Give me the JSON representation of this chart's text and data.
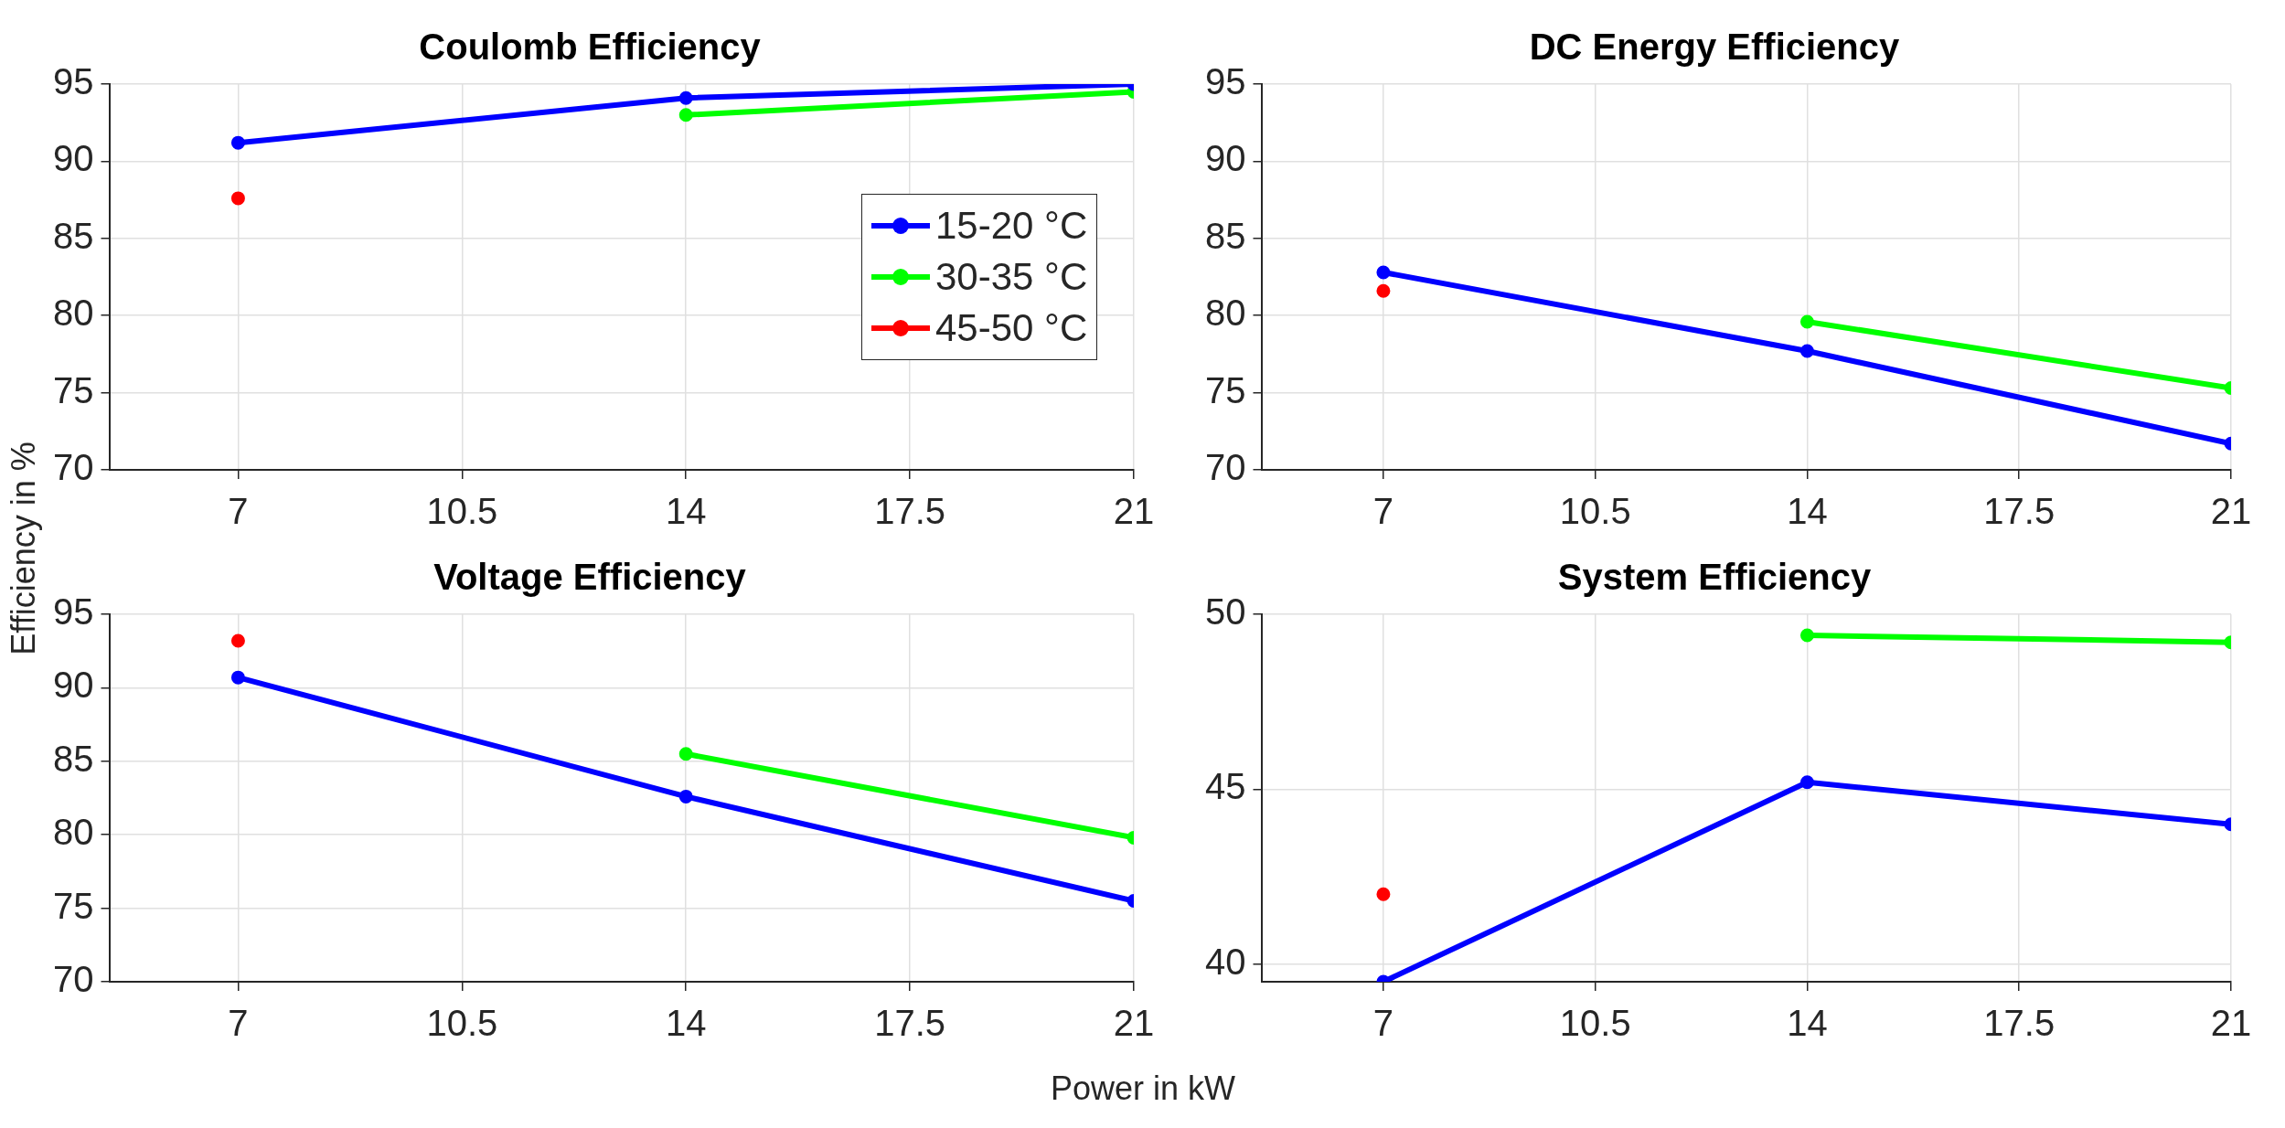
{
  "chart_data": [
    {
      "type": "line",
      "title": "Coulomb Efficiency",
      "ylabel": "Efficiency in %",
      "x": [
        7,
        14,
        21
      ],
      "xlim": [
        5,
        21
      ],
      "xticks": [
        7,
        10.5,
        14,
        17.5,
        21
      ],
      "ylim": [
        70,
        95
      ],
      "yticks": [
        70,
        75,
        80,
        85,
        90,
        95
      ],
      "grid": true,
      "legend": "right",
      "marker": "circle",
      "series": [
        {
          "name": "15-20 °C",
          "color": "#0000ff",
          "values": [
            91.2,
            94.1,
            95.0
          ]
        },
        {
          "name": "30-35 °C",
          "color": "#00ff00",
          "values": [
            null,
            93.0,
            94.5
          ]
        },
        {
          "name": "45-50 °C",
          "color": "#ff0000",
          "values": [
            87.6,
            null,
            null
          ]
        }
      ]
    },
    {
      "type": "line",
      "title": "DC Energy Efficiency",
      "x": [
        7,
        14,
        21
      ],
      "xlim": [
        5,
        21
      ],
      "xticks": [
        7,
        10.5,
        14,
        17.5,
        21
      ],
      "ylim": [
        70,
        95
      ],
      "yticks": [
        70,
        75,
        80,
        85,
        90,
        95
      ],
      "grid": true,
      "marker": "circle",
      "series": [
        {
          "color": "#0000ff",
          "values": [
            82.8,
            77.7,
            71.7
          ]
        },
        {
          "color": "#00ff00",
          "values": [
            null,
            79.6,
            75.3
          ]
        },
        {
          "color": "#ff0000",
          "values": [
            81.6,
            null,
            null
          ]
        }
      ]
    },
    {
      "type": "line",
      "title": "Voltage Efficiency",
      "xlabel": "Power in kW",
      "x": [
        7,
        14,
        21
      ],
      "xlim": [
        5,
        21
      ],
      "xticks": [
        7,
        10.5,
        14,
        17.5,
        21
      ],
      "ylim": [
        70,
        95
      ],
      "yticks": [
        70,
        75,
        80,
        85,
        90,
        95
      ],
      "grid": true,
      "marker": "circle",
      "series": [
        {
          "color": "#0000ff",
          "values": [
            90.7,
            82.6,
            75.5
          ]
        },
        {
          "color": "#00ff00",
          "values": [
            null,
            85.5,
            79.8
          ]
        },
        {
          "color": "#ff0000",
          "values": [
            93.2,
            null,
            null
          ]
        }
      ]
    },
    {
      "type": "line",
      "title": "System Efficiency",
      "x": [
        7,
        14,
        21
      ],
      "xlim": [
        5,
        21
      ],
      "xticks": [
        7,
        10.5,
        14,
        17.5,
        21
      ],
      "ylim": [
        39.5,
        50
      ],
      "yticks": [
        40,
        45,
        50
      ],
      "grid": true,
      "marker": "circle",
      "series": [
        {
          "color": "#0000ff",
          "values": [
            39.5,
            45.2,
            44.0
          ]
        },
        {
          "color": "#00ff00",
          "values": [
            null,
            49.4,
            49.2
          ]
        },
        {
          "color": "#ff0000",
          "values": [
            42.0,
            null,
            null
          ]
        }
      ]
    }
  ]
}
